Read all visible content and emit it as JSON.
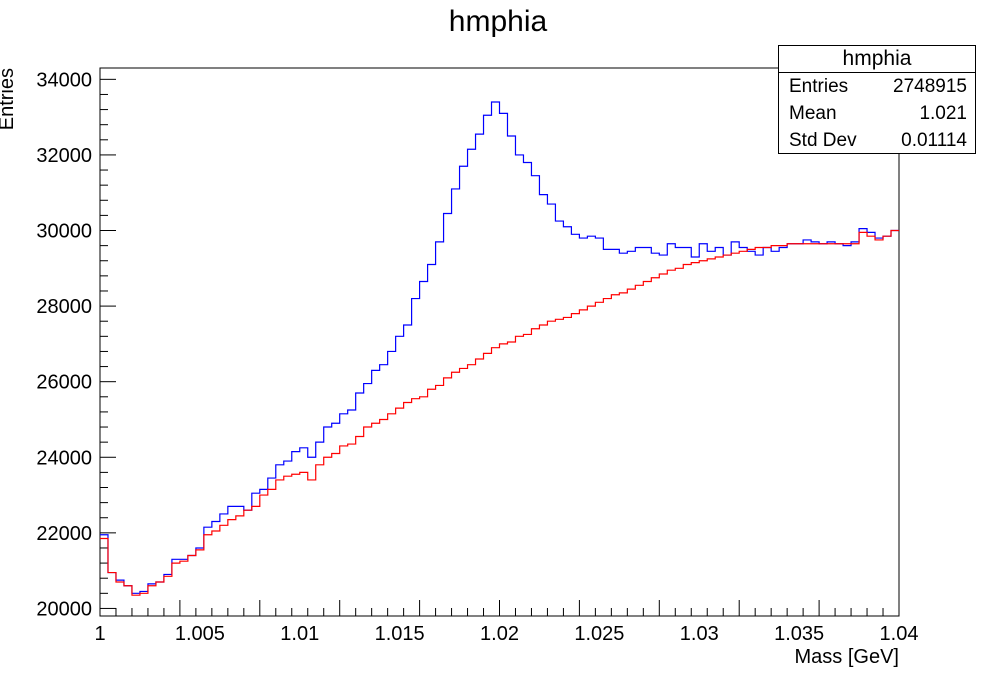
{
  "chart_data": {
    "type": "line",
    "title": "hmphia",
    "xlabel": "Mass [GeV]",
    "ylabel": "Entries",
    "xlim": [
      1.0,
      1.04
    ],
    "ylim": [
      19800,
      34300
    ],
    "x_ticks": [
      "1",
      "1.005",
      "1.01",
      "1.015",
      "1.02",
      "1.025",
      "1.03",
      "1.035",
      "1.04"
    ],
    "y_ticks": [
      "20000",
      "22000",
      "24000",
      "26000",
      "28000",
      "30000",
      "32000",
      "34000"
    ],
    "x_tick_values": [
      1.0,
      1.005,
      1.01,
      1.015,
      1.02,
      1.025,
      1.03,
      1.035,
      1.04
    ],
    "y_tick_values": [
      20000,
      22000,
      24000,
      26000,
      28000,
      30000,
      32000,
      34000
    ],
    "bin_width": 0.0004,
    "bin_low_edges": [
      1.0,
      1.0004,
      1.0008,
      1.0012,
      1.0016,
      1.002,
      1.0024,
      1.0028,
      1.0032,
      1.0036,
      1.004,
      1.0044,
      1.0048,
      1.0052,
      1.0056,
      1.006,
      1.0064,
      1.0068,
      1.0072,
      1.0076,
      1.008,
      1.0084,
      1.0088,
      1.0092,
      1.0096,
      1.01,
      1.0104,
      1.0108,
      1.0112,
      1.0116,
      1.012,
      1.0124,
      1.0128,
      1.0132,
      1.0136,
      1.014,
      1.0144,
      1.0148,
      1.0152,
      1.0156,
      1.016,
      1.0164,
      1.0168,
      1.0172,
      1.0176,
      1.018,
      1.0184,
      1.0188,
      1.0192,
      1.0196,
      1.02,
      1.0204,
      1.0208,
      1.0212,
      1.0216,
      1.022,
      1.0224,
      1.0228,
      1.0232,
      1.0236,
      1.024,
      1.0244,
      1.0248,
      1.0252,
      1.0256,
      1.026,
      1.0264,
      1.0268,
      1.0272,
      1.0276,
      1.028,
      1.0284,
      1.0288,
      1.0292,
      1.0296,
      1.03,
      1.0304,
      1.0308,
      1.0312,
      1.0316,
      1.032,
      1.0324,
      1.0328,
      1.0332,
      1.0336,
      1.034,
      1.0344,
      1.0348,
      1.0352,
      1.0356,
      1.036,
      1.0364,
      1.0368,
      1.0372,
      1.0376,
      1.038,
      1.0384,
      1.0388,
      1.0392,
      1.0396
    ],
    "series": [
      {
        "color": "#0000ff",
        "values": [
          21950,
          20950,
          20750,
          20600,
          20400,
          20450,
          20650,
          20700,
          20900,
          21300,
          21300,
          21400,
          21600,
          22150,
          22300,
          22500,
          22700,
          22700,
          22600,
          23050,
          23150,
          23450,
          23800,
          23900,
          24150,
          24250,
          24000,
          24400,
          24800,
          24900,
          25150,
          25250,
          25700,
          25950,
          26300,
          26450,
          26800,
          27200,
          27500,
          28200,
          28650,
          29100,
          29700,
          30450,
          31100,
          31700,
          32150,
          32550,
          33050,
          33400,
          33100,
          32500,
          32000,
          31800,
          31450,
          30950,
          30700,
          30250,
          30100,
          29900,
          29800,
          29850,
          29800,
          29500,
          29500,
          29400,
          29450,
          29550,
          29550,
          29400,
          29350,
          29650,
          29550,
          29550,
          29300,
          29650,
          29450,
          29550,
          29350,
          29700,
          29550,
          29450,
          29350,
          29550,
          29450,
          29550,
          29650,
          29650,
          29750,
          29700,
          29650,
          29700,
          29650,
          29600,
          29700,
          30050,
          29950,
          29800,
          29850,
          30000
        ]
      },
      {
        "color": "#ff0000",
        "values": [
          21850,
          20950,
          20700,
          20600,
          20350,
          20400,
          20600,
          20700,
          20850,
          21200,
          21250,
          21400,
          21550,
          21950,
          22050,
          22200,
          22350,
          22450,
          22600,
          22700,
          23000,
          23150,
          23400,
          23500,
          23550,
          23600,
          23400,
          23800,
          24000,
          24100,
          24300,
          24350,
          24550,
          24800,
          24900,
          25000,
          25150,
          25300,
          25450,
          25550,
          25600,
          25800,
          25900,
          26100,
          26250,
          26350,
          26450,
          26600,
          26750,
          26900,
          27000,
          27050,
          27200,
          27250,
          27400,
          27500,
          27600,
          27650,
          27700,
          27800,
          27900,
          28000,
          28100,
          28200,
          28300,
          28350,
          28450,
          28550,
          28650,
          28750,
          28850,
          28950,
          29000,
          29100,
          29150,
          29200,
          29250,
          29300,
          29350,
          29400,
          29450,
          29500,
          29550,
          29550,
          29600,
          29600,
          29650,
          29650,
          29650,
          29650,
          29650,
          29650,
          29650,
          29650,
          29650,
          29950,
          29850,
          29750,
          29850,
          30000
        ]
      }
    ]
  },
  "stats": {
    "title": "hmphia",
    "rows": [
      {
        "key": "Entries",
        "value": "2748915"
      },
      {
        "key": "Mean",
        "value": "1.021"
      },
      {
        "key": "Std Dev",
        "value": "0.01114"
      }
    ]
  }
}
